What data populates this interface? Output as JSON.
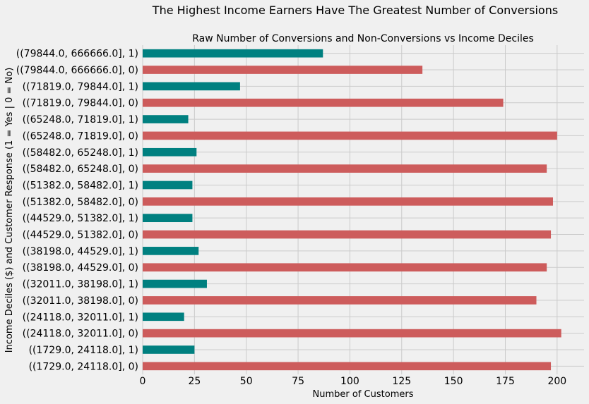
{
  "chart_data": {
    "type": "bar",
    "orientation": "horizontal",
    "suptitle": "The Highest Income Earners Have The Greatest Number of Conversions",
    "title": "Raw Number of Conversions and Non-Conversions vs Income Deciles",
    "xlabel": "Number of Customers",
    "ylabel": "Income Deciles ($) and Customer Response (1 = Yes | 0 = No)",
    "xlim": [
      0,
      213
    ],
    "xticks": [
      0,
      25,
      50,
      75,
      100,
      125,
      150,
      175,
      200
    ],
    "grid": true,
    "colors": {
      "response_1": "#008080",
      "response_0": "#cd5c5c",
      "background": "#f0f0f0",
      "grid": "#cbcbcb"
    },
    "bars": [
      {
        "label": "((79844.0, 666666.0], 1)",
        "value": 87,
        "response": 1
      },
      {
        "label": "((79844.0, 666666.0], 0)",
        "value": 135,
        "response": 0
      },
      {
        "label": "((71819.0, 79844.0], 1)",
        "value": 47,
        "response": 1
      },
      {
        "label": "((71819.0, 79844.0], 0)",
        "value": 174,
        "response": 0
      },
      {
        "label": "((65248.0, 71819.0], 1)",
        "value": 22,
        "response": 1
      },
      {
        "label": "((65248.0, 71819.0], 0)",
        "value": 200,
        "response": 0
      },
      {
        "label": "((58482.0, 65248.0], 1)",
        "value": 26,
        "response": 1
      },
      {
        "label": "((58482.0, 65248.0], 0)",
        "value": 195,
        "response": 0
      },
      {
        "label": "((51382.0, 58482.0], 1)",
        "value": 24,
        "response": 1
      },
      {
        "label": "((51382.0, 58482.0], 0)",
        "value": 198,
        "response": 0
      },
      {
        "label": "((44529.0, 51382.0], 1)",
        "value": 24,
        "response": 1
      },
      {
        "label": "((44529.0, 51382.0], 0)",
        "value": 197,
        "response": 0
      },
      {
        "label": "((38198.0, 44529.0], 1)",
        "value": 27,
        "response": 1
      },
      {
        "label": "((38198.0, 44529.0], 0)",
        "value": 195,
        "response": 0
      },
      {
        "label": "((32011.0, 38198.0], 1)",
        "value": 31,
        "response": 1
      },
      {
        "label": "((32011.0, 38198.0], 0)",
        "value": 190,
        "response": 0
      },
      {
        "label": "((24118.0, 32011.0], 1)",
        "value": 20,
        "response": 1
      },
      {
        "label": "((24118.0, 32011.0], 0)",
        "value": 202,
        "response": 0
      },
      {
        "label": "((1729.0, 24118.0], 1)",
        "value": 25,
        "response": 1
      },
      {
        "label": "((1729.0, 24118.0], 0)",
        "value": 197,
        "response": 0
      }
    ]
  }
}
